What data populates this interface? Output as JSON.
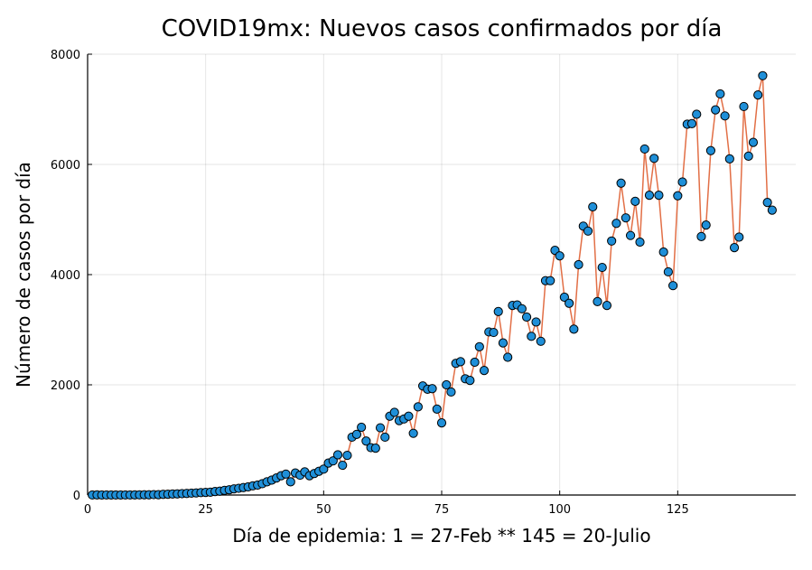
{
  "chart_data": {
    "type": "line",
    "title": "COVID19mx: Nuevos casos confirmados por día",
    "xlabel": "Día de epidemia: 1 = 27-Feb ** 145 = 20-Julio",
    "ylabel": "Número de casos por día",
    "xlim": [
      0,
      150
    ],
    "ylim": [
      0,
      8000
    ],
    "xticks": [
      0,
      25,
      50,
      75,
      100,
      125
    ],
    "yticks": [
      0,
      2000,
      4000,
      6000,
      8000
    ],
    "grid": true,
    "colors": {
      "line": "#e26f46",
      "marker": "#1f8fd8",
      "marker_edge": "#000000"
    },
    "series": [
      {
        "x": [
          1,
          2,
          3,
          4,
          5,
          6,
          7,
          8,
          9,
          10,
          11,
          12,
          13,
          14,
          15,
          16,
          17,
          18,
          19,
          20,
          21,
          22,
          23,
          24,
          25,
          26,
          27,
          28,
          29,
          30,
          31,
          32,
          33,
          34,
          35,
          36,
          37,
          38,
          39,
          40,
          41,
          42,
          43,
          44,
          45,
          46,
          47,
          48,
          49,
          50,
          51,
          52,
          53,
          54,
          55,
          56,
          57,
          58,
          59,
          60,
          61,
          62,
          63,
          64,
          65,
          66,
          67,
          68,
          69,
          70,
          71,
          72,
          73,
          74,
          75,
          76,
          77,
          78,
          79,
          80,
          81,
          82,
          83,
          84,
          85,
          86,
          87,
          88,
          89,
          90,
          91,
          92,
          93,
          94,
          95,
          96,
          97,
          98,
          99,
          100,
          101,
          102,
          103,
          104,
          105,
          106,
          107,
          108,
          109,
          110,
          111,
          112,
          113,
          114,
          115,
          116,
          117,
          118,
          119,
          120,
          121,
          122,
          123,
          124,
          125,
          126,
          127,
          128,
          129,
          130,
          131,
          132,
          133,
          134,
          135,
          136,
          137,
          138,
          139,
          140,
          141,
          142,
          143,
          144,
          145
        ],
        "y": [
          1,
          2,
          0,
          1,
          0,
          1,
          0,
          1,
          1,
          2,
          3,
          4,
          4,
          7,
          6,
          12,
          14,
          18,
          20,
          25,
          29,
          34,
          38,
          44,
          47,
          51,
          63,
          70,
          85,
          95,
          112,
          122,
          135,
          148,
          167,
          180,
          206,
          240,
          270,
          310,
          350,
          380,
          240,
          400,
          360,
          420,
          350,
          390,
          430,
          470,
          580,
          620,
          730,
          540,
          720,
          1050,
          1100,
          1230,
          980,
          860,
          850,
          1220,
          1050,
          1430,
          1500,
          1350,
          1380,
          1430,
          1120,
          1600,
          1980,
          1920,
          1930,
          1560,
          1310,
          2000,
          1870,
          2390,
          2420,
          2110,
          2080,
          2410,
          2690,
          2260,
          2960,
          2950,
          3330,
          2760,
          2500,
          3440,
          3450,
          3380,
          3230,
          2880,
          3140,
          2790,
          3890,
          3890,
          4440,
          4340,
          3590,
          3480,
          3010,
          4180,
          4880,
          4790,
          5230,
          3510,
          4130,
          3440,
          4610,
          4930,
          5660,
          5030,
          4710,
          5330,
          4590,
          6280,
          5440,
          6110,
          5440,
          4410,
          4050,
          3800,
          5430,
          5680,
          6730,
          6740,
          6910,
          4690,
          4900,
          6250,
          6990,
          7280,
          6880,
          6100,
          4490,
          4680,
          7050,
          6150,
          6400,
          7260,
          7610,
          5310,
          5170
        ]
      }
    ]
  }
}
